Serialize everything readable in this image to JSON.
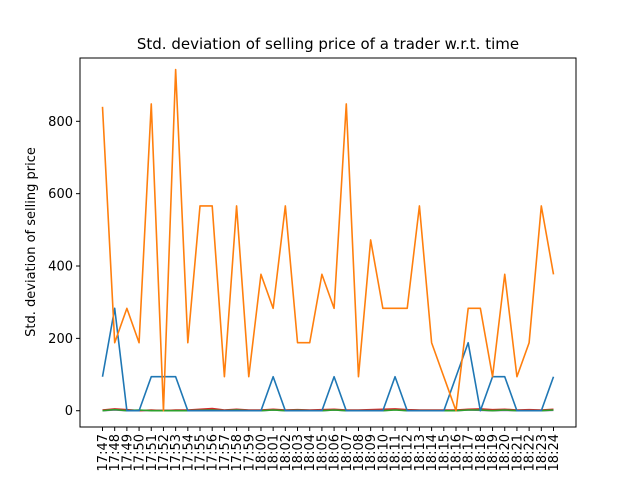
{
  "chart_data": {
    "type": "line",
    "title": "Std. deviation of selling price of a trader w.r.t. time",
    "xlabel": "",
    "ylabel": "Std. deviation of selling price",
    "ylim": [
      -45,
      975
    ],
    "yticks": [
      0,
      200,
      400,
      600,
      800
    ],
    "grid": false,
    "legend": "none",
    "categories": [
      "17:47",
      "17:48",
      "17:49",
      "17:50",
      "17:51",
      "17:52",
      "17:53",
      "17:54",
      "17:55",
      "17:56",
      "17:57",
      "17:58",
      "17:59",
      "18:00",
      "18:01",
      "18:02",
      "18:03",
      "18:04",
      "18:05",
      "18:06",
      "18:07",
      "18:08",
      "18:09",
      "18:10",
      "18:11",
      "18:12",
      "18:13",
      "18:14",
      "18:15",
      "18:16",
      "18:17",
      "18:18",
      "18:19",
      "18:20",
      "18:21",
      "18:22",
      "18:23",
      "18:24"
    ],
    "series": [
      {
        "color": "#ff7f0e",
        "values": [
          840,
          188,
          283,
          188,
          848,
          0,
          943,
          188,
          566,
          566,
          94,
          566,
          94,
          377,
          283,
          566,
          188,
          188,
          377,
          283,
          848,
          94,
          472,
          283,
          283,
          283,
          566,
          188,
          94,
          0,
          283,
          283,
          94,
          377,
          94,
          188,
          566,
          377
        ]
      },
      {
        "color": "#1f77b4",
        "values": [
          94,
          283,
          0,
          0,
          94,
          94,
          94,
          0,
          0,
          0,
          0,
          0,
          0,
          0,
          94,
          0,
          0,
          0,
          0,
          94,
          0,
          0,
          0,
          0,
          94,
          0,
          0,
          0,
          0,
          94,
          188,
          0,
          94,
          94,
          0,
          0,
          0,
          94
        ]
      },
      {
        "color": "#2ca02c",
        "values": [
          0,
          3,
          0,
          2,
          0,
          0,
          0,
          0,
          1,
          2,
          0,
          2,
          0,
          0,
          2,
          0,
          1,
          0,
          0,
          2,
          0,
          0,
          0,
          0,
          2,
          0,
          0,
          0,
          0,
          0,
          2,
          2,
          0,
          2,
          0,
          0,
          0,
          2
        ]
      },
      {
        "color": "#d62728",
        "values": [
          2,
          5,
          3,
          0,
          2,
          0,
          2,
          2,
          4,
          6,
          2,
          4,
          2,
          2,
          4,
          2,
          3,
          2,
          3,
          4,
          2,
          2,
          3,
          4,
          5,
          3,
          2,
          2,
          2,
          2,
          4,
          5,
          3,
          4,
          2,
          3,
          2,
          4
        ]
      },
      {
        "color": "#9467bd",
        "values": [
          0,
          2,
          0,
          0,
          1,
          0,
          0,
          0,
          1,
          3,
          0,
          1,
          0,
          0,
          2,
          0,
          1,
          0,
          0,
          2,
          0,
          0,
          0,
          0,
          3,
          0,
          0,
          0,
          0,
          0,
          2,
          1,
          0,
          1,
          0,
          0,
          0,
          1
        ]
      },
      {
        "color": "#8c564b",
        "values": [
          1,
          3,
          2,
          1,
          1,
          1,
          1,
          1,
          2,
          4,
          1,
          3,
          1,
          1,
          3,
          1,
          2,
          1,
          1,
          3,
          1,
          1,
          1,
          2,
          4,
          2,
          1,
          1,
          1,
          1,
          3,
          3,
          1,
          2,
          1,
          1,
          1,
          2
        ]
      }
    ]
  }
}
